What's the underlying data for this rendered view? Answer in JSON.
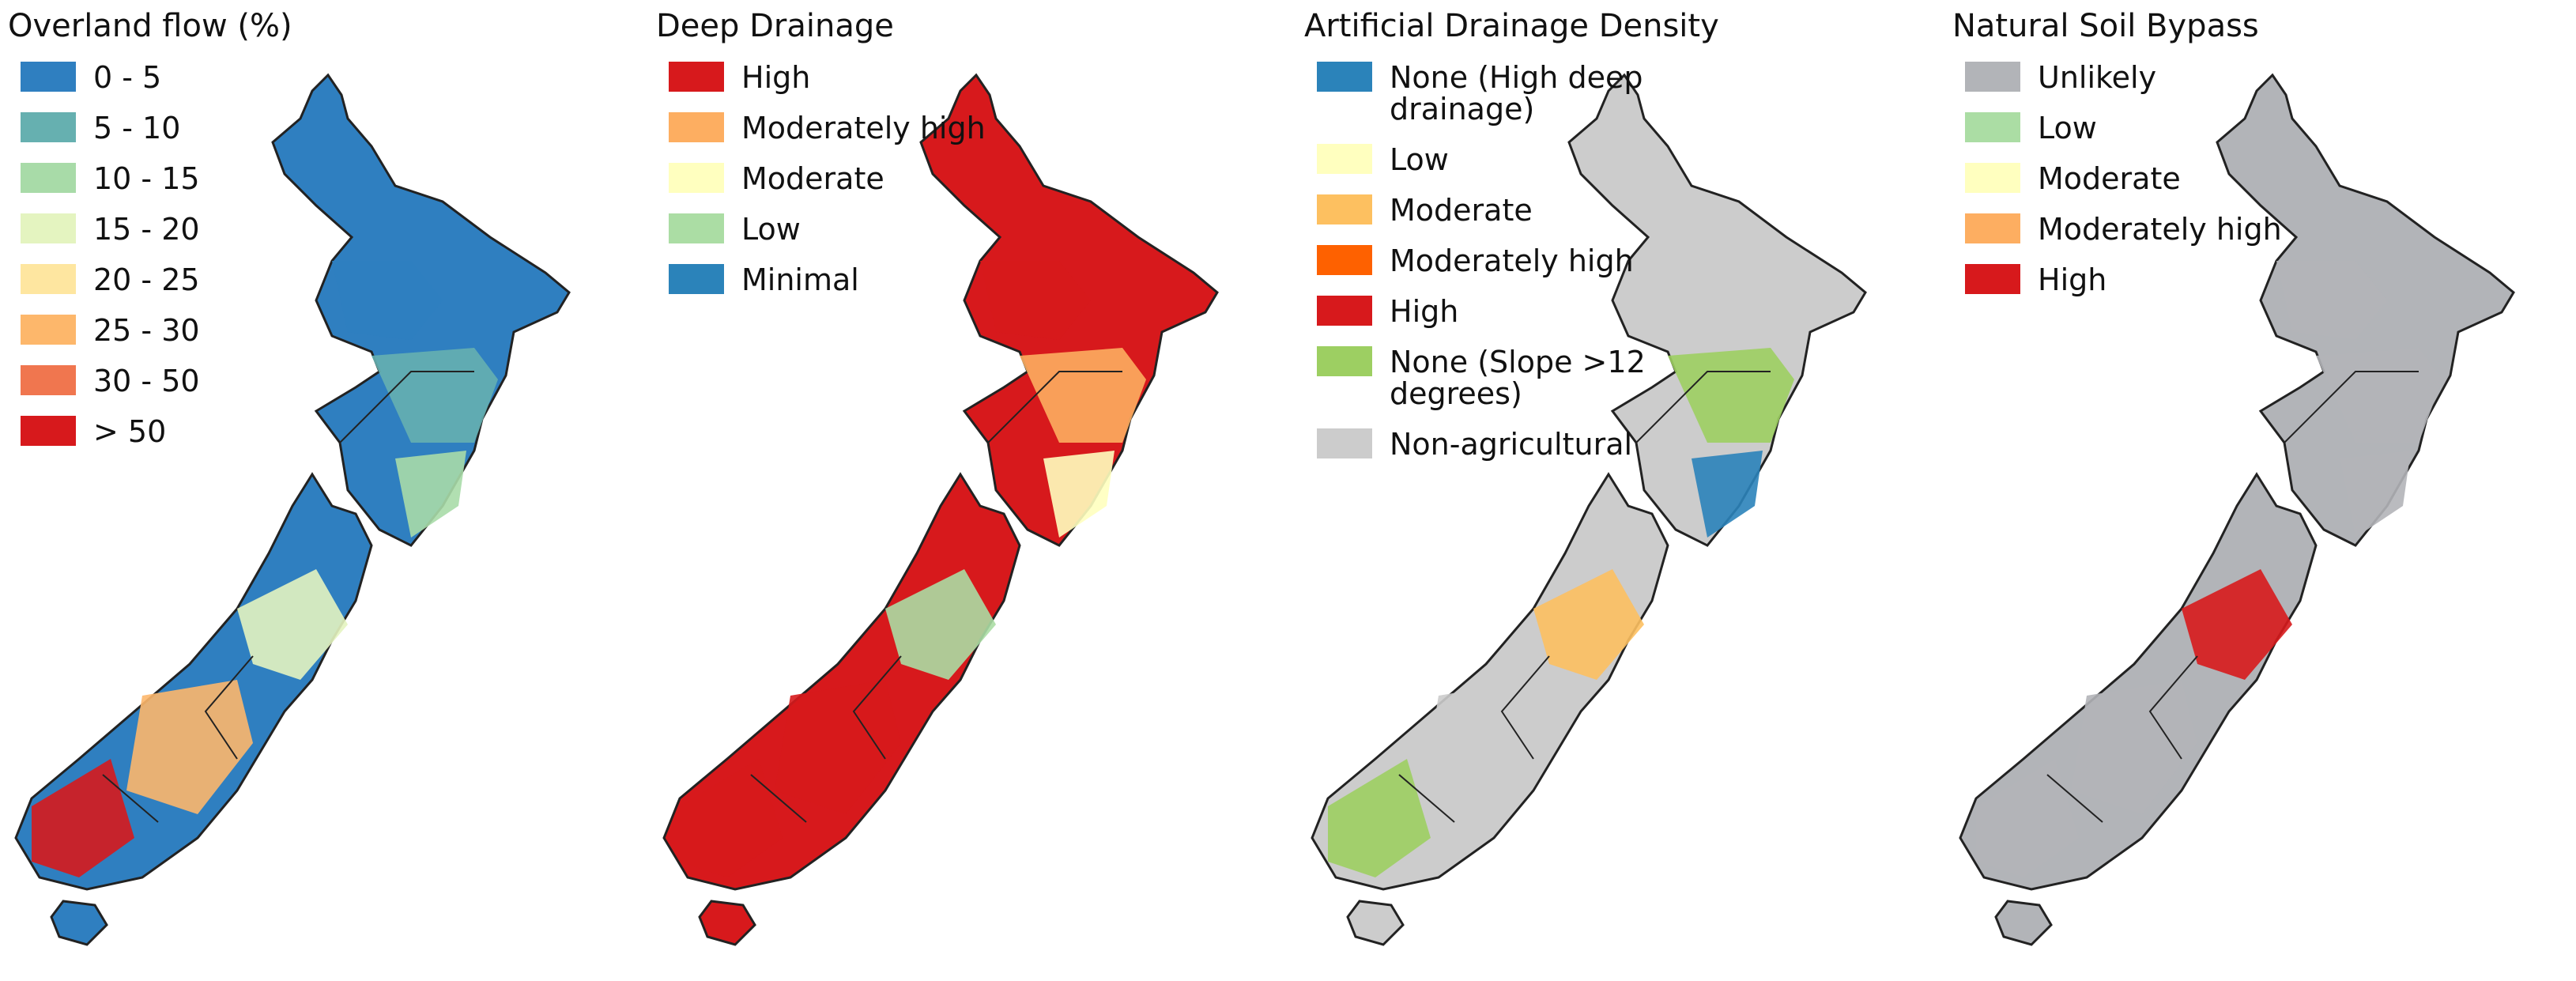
{
  "panels": [
    {
      "title": "Overland flow (%)",
      "legend": [
        {
          "label": "0 - 5",
          "color": "#2f7fc0"
        },
        {
          "label": "5 - 10",
          "color": "#66b0b0"
        },
        {
          "label": "10 - 15",
          "color": "#a8dba8"
        },
        {
          "label": "15 - 20",
          "color": "#e4f4c0"
        },
        {
          "label": "20 - 25",
          "color": "#fee6a0"
        },
        {
          "label": "25 - 30",
          "color": "#fdb76b"
        },
        {
          "label": "30 - 50",
          "color": "#f0764f"
        },
        {
          "label": "> 50",
          "color": "#d7191c"
        }
      ],
      "map_colors": [
        "#2f7fc0",
        "#66b0b0",
        "#a8dba8",
        "#e4f4c0",
        "#fdb76b",
        "#d7191c"
      ]
    },
    {
      "title": "Deep Drainage",
      "legend": [
        {
          "label": "High",
          "color": "#d7191c"
        },
        {
          "label": "Moderately high",
          "color": "#fdae61"
        },
        {
          "label": "Moderate",
          "color": "#ffffbf"
        },
        {
          "label": "Low",
          "color": "#abdda4"
        },
        {
          "label": "Minimal",
          "color": "#2b83ba"
        }
      ],
      "map_colors": [
        "#d7191c",
        "#fdae61",
        "#ffffbf",
        "#abdda4",
        "#d7191c"
      ]
    },
    {
      "title": "Artificial Drainage Density",
      "legend": [
        {
          "label": "None (High deep drainage)",
          "color": "#2b83ba"
        },
        {
          "label": "Low",
          "color": "#ffffbf"
        },
        {
          "label": "Moderate",
          "color": "#fdc060"
        },
        {
          "label": "Moderately high",
          "color": "#fe6100"
        },
        {
          "label": "High",
          "color": "#d7191c"
        },
        {
          "label": "None (Slope >12 degrees)",
          "color": "#9dcf62"
        },
        {
          "label": "Non-agricultural",
          "color": "#cccccc"
        }
      ],
      "map_colors": [
        "#cccccc",
        "#9dcf62",
        "#2b83ba",
        "#fdc060",
        "#cccccc",
        "#9dcf62"
      ]
    },
    {
      "title": "Natural Soil Bypass",
      "legend": [
        {
          "label": "Unlikely",
          "color": "#b2b4b8"
        },
        {
          "label": "Low",
          "color": "#abdda4"
        },
        {
          "label": "Moderate",
          "color": "#ffffbf"
        },
        {
          "label": "Moderately high",
          "color": "#fdae61"
        },
        {
          "label": "High",
          "color": "#d7191c"
        }
      ],
      "map_colors": [
        "#b2b4b8",
        "#b2b4b8",
        "#b2b4b8",
        "#d7191c",
        "#b2b4b8",
        "#b2b4b8"
      ]
    }
  ]
}
